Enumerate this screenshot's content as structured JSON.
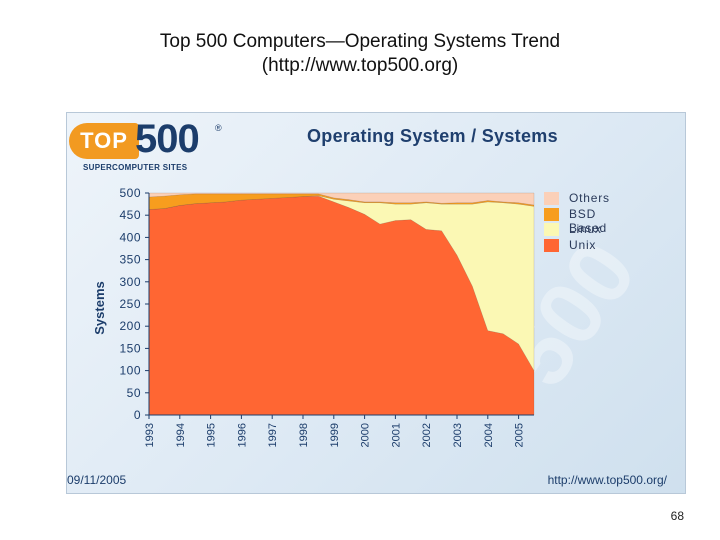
{
  "slide": {
    "title_line1": "Top 500 Computers—Operating Systems Trend",
    "title_line2": "(http://www.top500.org)",
    "page_number": "68"
  },
  "panel": {
    "logo_top": "TOP",
    "logo_num": "500",
    "logo_reg": "®",
    "logo_sub": "SUPERCOMPUTER SITES",
    "title": "Operating System / Systems",
    "date": "09/11/2005",
    "url": "http://www.top500.org/",
    "watermark": "500"
  },
  "chart_data": {
    "type": "area",
    "stacked": true,
    "title": "Operating System / Systems",
    "ylabel": "Systems",
    "xlabel": "",
    "ylim": [
      0,
      500
    ],
    "yticks": [
      0,
      50,
      100,
      150,
      200,
      250,
      300,
      350,
      400,
      450,
      500
    ],
    "x_tick_labels": [
      "1993",
      "1994",
      "1995",
      "1996",
      "1997",
      "1998",
      "1999",
      "2000",
      "2001",
      "2002",
      "2003",
      "2004",
      "2005"
    ],
    "x": [
      1993.0,
      1993.5,
      1994.0,
      1994.5,
      1995.0,
      1995.5,
      1996.0,
      1996.5,
      1997.0,
      1997.5,
      1998.0,
      1998.5,
      1999.0,
      1999.5,
      2000.0,
      2000.5,
      2001.0,
      2001.5,
      2002.0,
      2002.5,
      2003.0,
      2003.5,
      2004.0,
      2004.5,
      2005.0,
      2005.5
    ],
    "series": [
      {
        "name": "Unix",
        "color": "#ff6633",
        "values": [
          463,
          465,
          472,
          476,
          478,
          480,
          484,
          486,
          488,
          490,
          492,
          493,
          480,
          467,
          452,
          430,
          438,
          440,
          418,
          415,
          360,
          290,
          190,
          183,
          160,
          100
        ]
      },
      {
        "name": "Linux",
        "color": "#fbf8b4",
        "values": [
          0,
          0,
          0,
          0,
          0,
          0,
          0,
          0,
          0,
          0,
          0,
          1,
          6,
          15,
          26,
          48,
          37,
          35,
          60,
          60,
          115,
          185,
          290,
          295,
          315,
          370
        ]
      },
      {
        "name": "BSD Based",
        "color": "#f79d1e",
        "values": [
          28,
          28,
          24,
          22,
          20,
          18,
          14,
          12,
          10,
          8,
          6,
          4,
          3,
          3,
          2,
          2,
          3,
          3,
          2,
          2,
          3,
          3,
          3,
          2,
          3,
          3
        ]
      },
      {
        "name": "Others",
        "color": "#fbd0b8",
        "values": [
          9,
          7,
          4,
          2,
          2,
          2,
          2,
          2,
          2,
          2,
          2,
          2,
          11,
          15,
          20,
          20,
          22,
          22,
          20,
          23,
          22,
          22,
          17,
          20,
          22,
          27
        ]
      }
    ],
    "legend": [
      "Others",
      "BSD Based",
      "Linux",
      "Unix"
    ],
    "legend_colors": [
      "#fbd0b8",
      "#f79d1e",
      "#fbf8b4",
      "#ff6633"
    ],
    "legend_position": "right"
  }
}
